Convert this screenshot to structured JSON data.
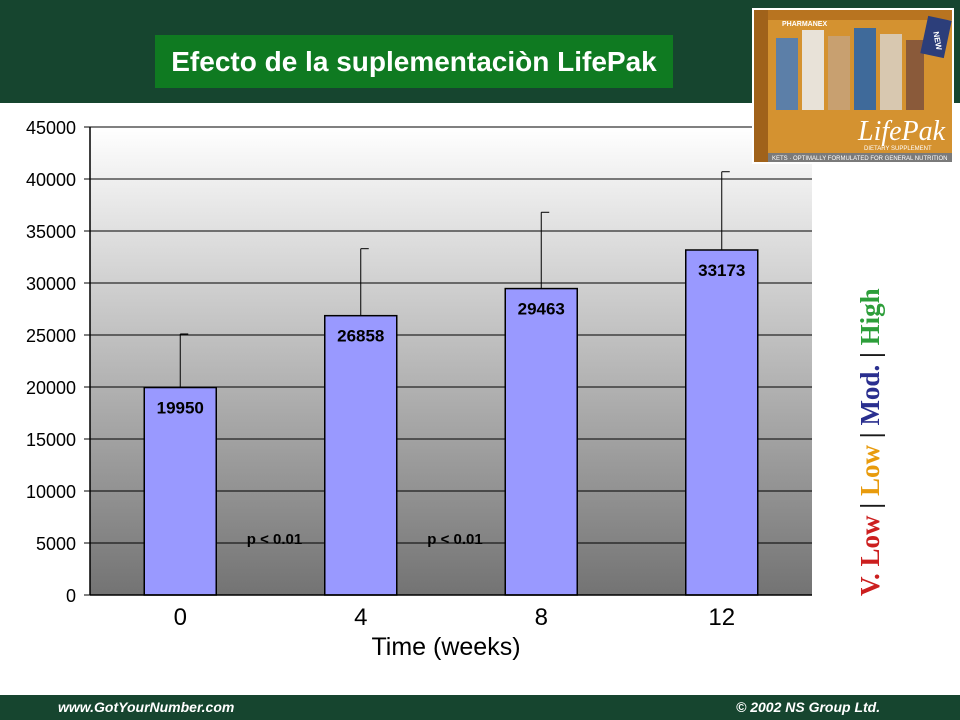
{
  "title": "Efecto de la suplementaciòn LifePak",
  "footer": {
    "left": "www.GotYourNumber.com",
    "right": "© 2002 NS Group Ltd."
  },
  "product_image": {
    "brand": "PHARMANEX",
    "name": "LifePak",
    "subtitle": "DIETARY SUPPLEMENT",
    "tagline": "KETS · OPTIMALLY FORMULATED FOR GENERAL NUTRITION",
    "badge": "NEW"
  },
  "side_legend": {
    "items": [
      {
        "label": "V. Low",
        "color": "#cc1f1f"
      },
      {
        "label": "Low",
        "color": "#e89b0c"
      },
      {
        "label": "Mod.",
        "color": "#2a2f8f"
      },
      {
        "label": "High",
        "color": "#2d9e3a"
      }
    ],
    "separator": "|"
  },
  "chart_data": {
    "type": "bar",
    "categories": [
      "0",
      "4",
      "8",
      "12"
    ],
    "values": [
      19950,
      26858,
      29463,
      33173
    ],
    "error_upper": [
      25100,
      33300,
      36800,
      40700
    ],
    "data_labels": [
      "19950",
      "26858",
      "29463",
      "33173"
    ],
    "title": "",
    "xlabel": "Time (weeks)",
    "ylabel": "",
    "ylim": [
      0,
      45000
    ],
    "yticks": [
      "0",
      "5000",
      "10000",
      "15000",
      "20000",
      "25000",
      "30000",
      "35000",
      "40000",
      "45000"
    ],
    "grid": true,
    "annotations": [
      {
        "text": "p < 0.01",
        "between": [
          "0",
          "4"
        ]
      },
      {
        "text": "p < 0.01",
        "between": [
          "4",
          "8"
        ]
      }
    ],
    "bar_color": "#9999ff",
    "plot_gradient": [
      "#ffffff",
      "#737373"
    ]
  }
}
